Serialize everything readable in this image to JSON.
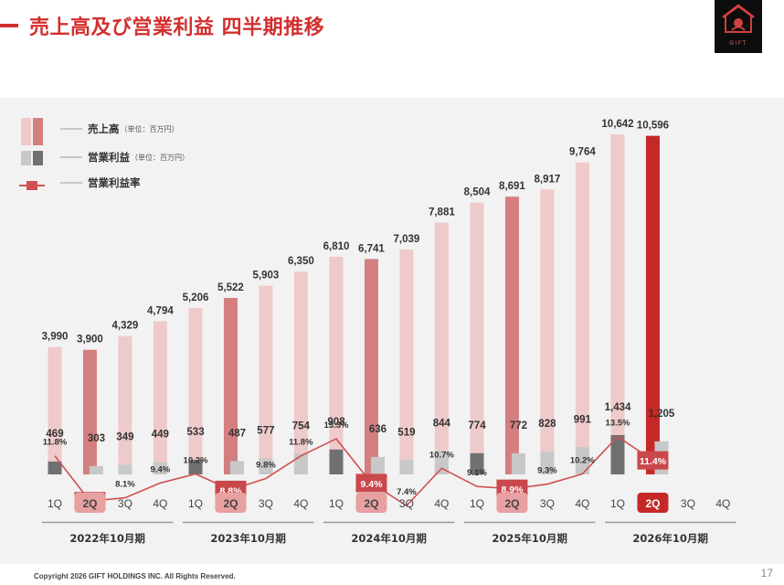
{
  "header": {
    "title": "売上高及び営業利益 四半期推移"
  },
  "logo": {
    "text": "GIFT"
  },
  "footer": {
    "copyright": "Copyright 2026 GIFT HOLDINGS INC. All Rights Reserved.",
    "page": "17"
  },
  "colors": {
    "sales_light": "#efcaca",
    "sales_highlight": "#d47f7f",
    "sales_current": "#c62828",
    "profit_light": "#c8c8c8",
    "profit_dark": "#707070",
    "margin_line": "#d05050",
    "badge": "#c9484c",
    "quarter_badge": "#e8a0a0",
    "quarter_badge_current": "#c62828"
  },
  "chart_data": {
    "type": "bar",
    "legend": [
      {
        "label": "売上高",
        "unit": "（単位：百万円）"
      },
      {
        "label": "営業利益",
        "unit": "（単位：百万円）"
      },
      {
        "label": "営業利益率",
        "unit": ""
      }
    ],
    "quarters": [
      "1Q",
      "2Q",
      "3Q",
      "4Q",
      "1Q",
      "2Q",
      "3Q",
      "4Q",
      "1Q",
      "2Q",
      "3Q",
      "4Q",
      "1Q",
      "2Q",
      "3Q",
      "4Q",
      "1Q",
      "2Q",
      "3Q",
      "4Q"
    ],
    "periods": [
      "2022年10月期",
      "2023年10月期",
      "2024年10月期",
      "2025年10月期",
      "2026年10月期"
    ],
    "sales": [
      3990,
      3900,
      4329,
      4794,
      5206,
      5522,
      5903,
      6350,
      6810,
      6741,
      7039,
      7881,
      8504,
      8691,
      8917,
      9764,
      10642,
      10596,
      null,
      null
    ],
    "sales_labels": [
      "3,990",
      "3,900",
      "4,329",
      "4,794",
      "5,206",
      "5,522",
      "5,903",
      "6,350",
      "6,810",
      "6,741",
      "7,039",
      "7,881",
      "8,504",
      "8,691",
      "8,917",
      "9,764",
      "10,642",
      "10,596",
      "",
      ""
    ],
    "operating_profit": [
      469,
      303,
      349,
      449,
      533,
      487,
      577,
      754,
      908,
      636,
      519,
      844,
      774,
      772,
      828,
      991,
      1434,
      1205,
      null,
      null
    ],
    "operating_profit_labels": [
      "469",
      "303",
      "349",
      "449",
      "533",
      "487",
      "577",
      "754",
      "908",
      "636",
      "519",
      "844",
      "774",
      "772",
      "828",
      "991",
      "1,434",
      "1,205",
      "",
      ""
    ],
    "operating_margin": [
      11.8,
      7.8,
      8.1,
      9.4,
      10.2,
      8.8,
      9.8,
      11.8,
      13.3,
      9.4,
      7.4,
      10.7,
      9.1,
      8.9,
      9.3,
      10.2,
      13.5,
      11.4,
      null,
      null
    ],
    "operating_margin_labels": [
      "11.8%",
      "7.8%",
      "8.1%",
      "9.4%",
      "10.2%",
      "8.8%",
      "9.8%",
      "11.8%",
      "13.3%",
      "9.4%",
      "7.4%",
      "10.7%",
      "9.1%",
      "8.9%",
      "9.3%",
      "10.2%",
      "13.5%",
      "11.4%",
      "",
      ""
    ],
    "highlighted_quarter": "2Q",
    "current_index": 17
  }
}
